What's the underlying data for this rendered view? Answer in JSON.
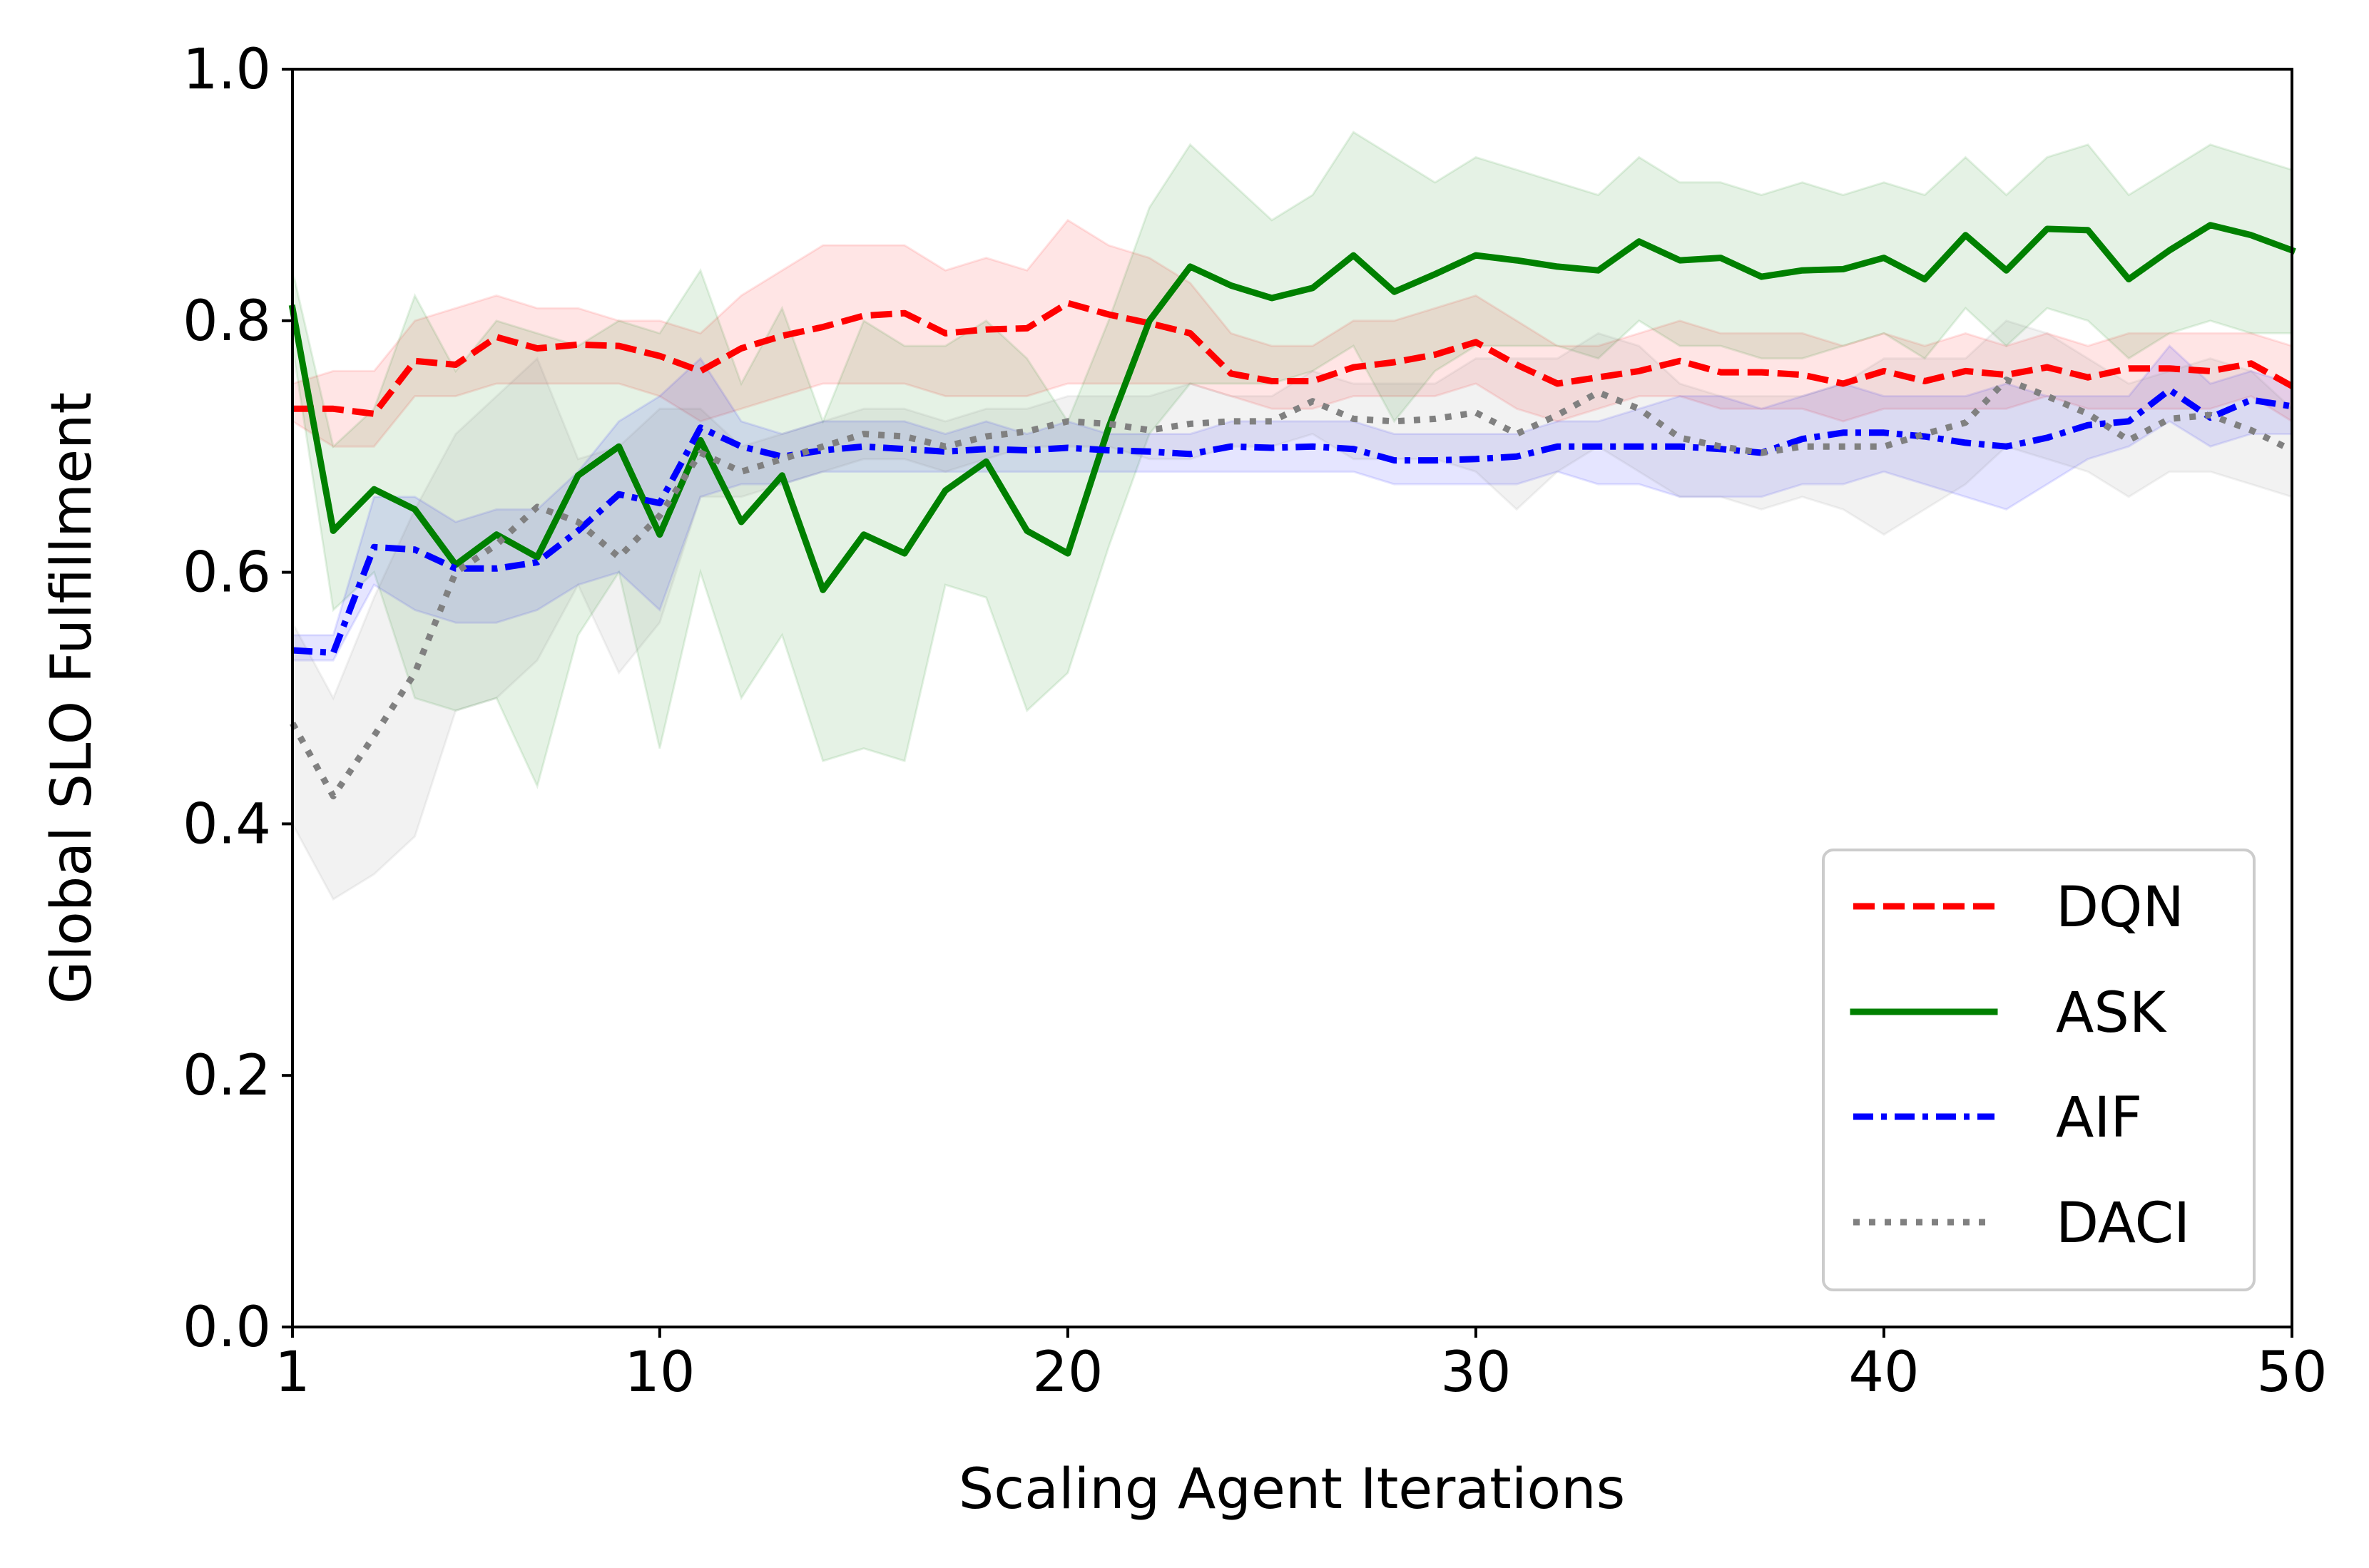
{
  "chart_data": {
    "type": "line",
    "title": "",
    "xlabel": "Scaling Agent Iterations",
    "ylabel": "Global SLO Fulfillment",
    "xlim": [
      1,
      50
    ],
    "ylim": [
      0.0,
      1.0
    ],
    "xticks": [
      1,
      10,
      20,
      30,
      40,
      50
    ],
    "yticks": [
      "0.0",
      "0.2",
      "0.4",
      "0.6",
      "0.8",
      "1.0"
    ],
    "grid": false,
    "legend_position": "lower right",
    "x": [
      1,
      2,
      3,
      4,
      5,
      6,
      7,
      8,
      9,
      10,
      11,
      12,
      13,
      14,
      15,
      16,
      17,
      18,
      19,
      20,
      21,
      22,
      23,
      24,
      25,
      26,
      27,
      28,
      29,
      30,
      31,
      32,
      33,
      34,
      35,
      36,
      37,
      38,
      39,
      40,
      41,
      42,
      43,
      44,
      45,
      46,
      47,
      48,
      49,
      50
    ],
    "series": [
      {
        "name": "DQN",
        "color": "#ff0000",
        "dash": "dashed",
        "values": [
          0.73,
          0.73,
          0.726,
          0.768,
          0.765,
          0.787,
          0.778,
          0.781,
          0.78,
          0.772,
          0.76,
          0.778,
          0.788,
          0.795,
          0.804,
          0.806,
          0.79,
          0.793,
          0.794,
          0.814,
          0.805,
          0.798,
          0.79,
          0.758,
          0.752,
          0.752,
          0.763,
          0.767,
          0.773,
          0.783,
          0.765,
          0.75,
          0.755,
          0.76,
          0.768,
          0.759,
          0.759,
          0.757,
          0.75,
          0.76,
          0.752,
          0.76,
          0.757,
          0.763,
          0.755,
          0.762,
          0.762,
          0.76,
          0.766,
          0.748
        ],
        "lower": [
          0.72,
          0.7,
          0.7,
          0.74,
          0.74,
          0.75,
          0.75,
          0.75,
          0.75,
          0.74,
          0.72,
          0.73,
          0.74,
          0.75,
          0.75,
          0.75,
          0.74,
          0.74,
          0.74,
          0.75,
          0.75,
          0.75,
          0.75,
          0.74,
          0.73,
          0.73,
          0.74,
          0.74,
          0.74,
          0.75,
          0.73,
          0.72,
          0.73,
          0.74,
          0.74,
          0.73,
          0.73,
          0.73,
          0.72,
          0.73,
          0.73,
          0.73,
          0.73,
          0.74,
          0.73,
          0.73,
          0.73,
          0.73,
          0.74,
          0.72
        ],
        "upper": [
          0.75,
          0.76,
          0.76,
          0.8,
          0.81,
          0.82,
          0.81,
          0.81,
          0.8,
          0.8,
          0.79,
          0.82,
          0.84,
          0.86,
          0.86,
          0.86,
          0.84,
          0.85,
          0.84,
          0.88,
          0.86,
          0.85,
          0.83,
          0.79,
          0.78,
          0.78,
          0.8,
          0.8,
          0.81,
          0.82,
          0.8,
          0.78,
          0.78,
          0.79,
          0.8,
          0.79,
          0.79,
          0.79,
          0.78,
          0.79,
          0.78,
          0.79,
          0.78,
          0.79,
          0.78,
          0.79,
          0.79,
          0.79,
          0.79,
          0.78
        ]
      },
      {
        "name": "ASK",
        "color": "#008000",
        "dash": "solid",
        "values": [
          0.81,
          0.633,
          0.666,
          0.65,
          0.606,
          0.63,
          0.612,
          0.677,
          0.7,
          0.63,
          0.705,
          0.64,
          0.677,
          0.586,
          0.63,
          0.615,
          0.665,
          0.688,
          0.633,
          0.615,
          0.715,
          0.8,
          0.843,
          0.828,
          0.818,
          0.826,
          0.852,
          0.823,
          0.837,
          0.852,
          0.848,
          0.843,
          0.84,
          0.863,
          0.848,
          0.85,
          0.835,
          0.84,
          0.841,
          0.85,
          0.833,
          0.868,
          0.84,
          0.873,
          0.872,
          0.833,
          0.856,
          0.876,
          0.868,
          0.856
        ],
        "lower": [
          0.78,
          0.57,
          0.6,
          0.5,
          0.49,
          0.5,
          0.43,
          0.55,
          0.6,
          0.46,
          0.6,
          0.5,
          0.55,
          0.45,
          0.46,
          0.45,
          0.59,
          0.58,
          0.49,
          0.52,
          0.62,
          0.71,
          0.75,
          0.75,
          0.75,
          0.76,
          0.78,
          0.72,
          0.76,
          0.78,
          0.78,
          0.78,
          0.77,
          0.8,
          0.78,
          0.78,
          0.77,
          0.77,
          0.78,
          0.79,
          0.77,
          0.81,
          0.78,
          0.81,
          0.8,
          0.77,
          0.79,
          0.8,
          0.79,
          0.79
        ],
        "upper": [
          0.84,
          0.7,
          0.73,
          0.82,
          0.76,
          0.8,
          0.79,
          0.78,
          0.8,
          0.79,
          0.84,
          0.75,
          0.81,
          0.72,
          0.8,
          0.78,
          0.78,
          0.8,
          0.77,
          0.72,
          0.8,
          0.89,
          0.94,
          0.91,
          0.88,
          0.9,
          0.95,
          0.93,
          0.91,
          0.93,
          0.92,
          0.91,
          0.9,
          0.93,
          0.91,
          0.91,
          0.9,
          0.91,
          0.9,
          0.91,
          0.9,
          0.93,
          0.9,
          0.93,
          0.94,
          0.9,
          0.92,
          0.94,
          0.93,
          0.92
        ]
      },
      {
        "name": "AIF",
        "color": "#0000ff",
        "dash": "dashdot",
        "values": [
          0.538,
          0.536,
          0.62,
          0.618,
          0.603,
          0.603,
          0.608,
          0.633,
          0.662,
          0.655,
          0.715,
          0.7,
          0.692,
          0.697,
          0.7,
          0.698,
          0.696,
          0.698,
          0.697,
          0.699,
          0.697,
          0.696,
          0.694,
          0.7,
          0.699,
          0.7,
          0.698,
          0.689,
          0.689,
          0.69,
          0.692,
          0.7,
          0.7,
          0.7,
          0.7,
          0.698,
          0.695,
          0.706,
          0.711,
          0.711,
          0.708,
          0.703,
          0.7,
          0.707,
          0.717,
          0.72,
          0.745,
          0.723,
          0.737,
          0.732
        ],
        "lower": [
          0.53,
          0.53,
          0.59,
          0.57,
          0.56,
          0.56,
          0.57,
          0.59,
          0.6,
          0.57,
          0.66,
          0.67,
          0.67,
          0.68,
          0.68,
          0.68,
          0.68,
          0.68,
          0.68,
          0.68,
          0.68,
          0.68,
          0.68,
          0.68,
          0.68,
          0.68,
          0.68,
          0.67,
          0.67,
          0.67,
          0.67,
          0.68,
          0.67,
          0.67,
          0.66,
          0.66,
          0.66,
          0.67,
          0.67,
          0.68,
          0.67,
          0.66,
          0.65,
          0.67,
          0.69,
          0.7,
          0.72,
          0.7,
          0.71,
          0.71
        ],
        "upper": [
          0.55,
          0.55,
          0.66,
          0.66,
          0.64,
          0.65,
          0.65,
          0.68,
          0.72,
          0.74,
          0.77,
          0.72,
          0.71,
          0.72,
          0.72,
          0.72,
          0.71,
          0.72,
          0.71,
          0.72,
          0.71,
          0.71,
          0.71,
          0.72,
          0.72,
          0.72,
          0.72,
          0.71,
          0.71,
          0.71,
          0.71,
          0.72,
          0.72,
          0.73,
          0.74,
          0.74,
          0.73,
          0.74,
          0.75,
          0.74,
          0.74,
          0.74,
          0.75,
          0.74,
          0.74,
          0.74,
          0.78,
          0.75,
          0.76,
          0.75
        ]
      },
      {
        "name": "DACI",
        "color": "#808080",
        "dash": "dotted",
        "values": [
          0.48,
          0.422,
          0.47,
          0.52,
          0.6,
          0.622,
          0.652,
          0.64,
          0.612,
          0.645,
          0.695,
          0.68,
          0.69,
          0.7,
          0.71,
          0.708,
          0.7,
          0.708,
          0.712,
          0.72,
          0.718,
          0.713,
          0.718,
          0.72,
          0.72,
          0.736,
          0.722,
          0.72,
          0.722,
          0.727,
          0.71,
          0.725,
          0.743,
          0.73,
          0.707,
          0.7,
          0.695,
          0.7,
          0.7,
          0.7,
          0.71,
          0.719,
          0.753,
          0.74,
          0.726,
          0.705,
          0.722,
          0.725,
          0.713,
          0.697
        ],
        "lower": [
          0.4,
          0.34,
          0.36,
          0.39,
          0.49,
          0.5,
          0.53,
          0.59,
          0.52,
          0.56,
          0.66,
          0.66,
          0.67,
          0.68,
          0.69,
          0.69,
          0.68,
          0.69,
          0.7,
          0.7,
          0.7,
          0.69,
          0.69,
          0.7,
          0.7,
          0.71,
          0.69,
          0.69,
          0.69,
          0.68,
          0.65,
          0.68,
          0.7,
          0.68,
          0.66,
          0.66,
          0.65,
          0.66,
          0.65,
          0.63,
          0.65,
          0.67,
          0.7,
          0.69,
          0.68,
          0.66,
          0.68,
          0.68,
          0.67,
          0.66
        ],
        "upper": [
          0.56,
          0.5,
          0.58,
          0.65,
          0.71,
          0.74,
          0.77,
          0.69,
          0.7,
          0.73,
          0.73,
          0.7,
          0.71,
          0.72,
          0.73,
          0.73,
          0.72,
          0.73,
          0.73,
          0.74,
          0.74,
          0.74,
          0.75,
          0.74,
          0.74,
          0.76,
          0.75,
          0.75,
          0.75,
          0.77,
          0.77,
          0.77,
          0.79,
          0.78,
          0.75,
          0.74,
          0.74,
          0.74,
          0.75,
          0.77,
          0.77,
          0.77,
          0.8,
          0.79,
          0.77,
          0.75,
          0.76,
          0.77,
          0.76,
          0.73
        ]
      }
    ]
  }
}
